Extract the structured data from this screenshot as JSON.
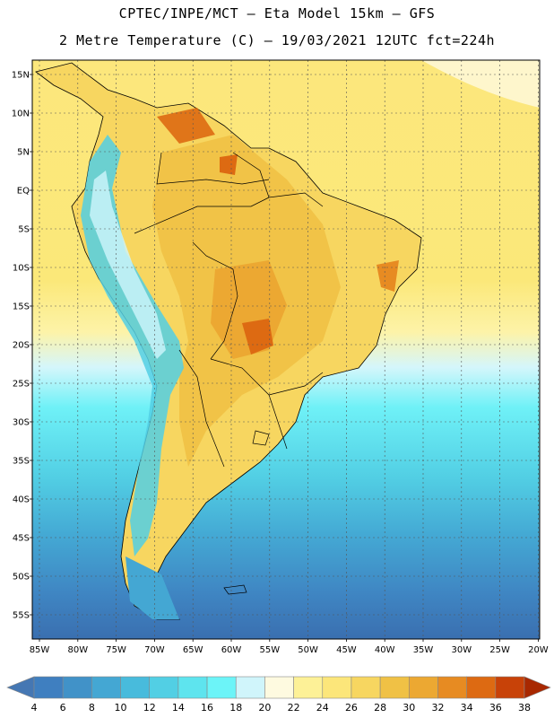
{
  "header": {
    "line1": "CPTEC/INPE/MCT –  Eta Model 15km – GFS",
    "line2": "2 Metre Temperature (C) – 19/03/2021 12UTC fct=224h"
  },
  "axes": {
    "lat_labels": [
      "15N",
      "10N",
      "5N",
      "EQ",
      "5S",
      "10S",
      "15S",
      "20S",
      "25S",
      "30S",
      "35S",
      "40S",
      "45S",
      "50S",
      "55S"
    ],
    "lon_labels": [
      "85W",
      "80W",
      "75W",
      "70W",
      "65W",
      "60W",
      "55W",
      "50W",
      "45W",
      "40W",
      "35W",
      "30W",
      "25W",
      "20W"
    ]
  },
  "colorbar": {
    "labels": [
      "4",
      "6",
      "8",
      "10",
      "12",
      "14",
      "16",
      "18",
      "20",
      "22",
      "24",
      "26",
      "28",
      "30",
      "32",
      "34",
      "36",
      "38"
    ],
    "colors": [
      "#4577b3",
      "#3f7fc0",
      "#4192c8",
      "#44a7d3",
      "#48bbdc",
      "#52cfe4",
      "#5ee4ee",
      "#6cf4f8",
      "#d0f5fb",
      "#fefae0",
      "#fdf197",
      "#fce67a",
      "#f7d660",
      "#f0c145",
      "#eca832",
      "#e78b22",
      "#dd6a12",
      "#c84208",
      "#a82800"
    ]
  }
}
